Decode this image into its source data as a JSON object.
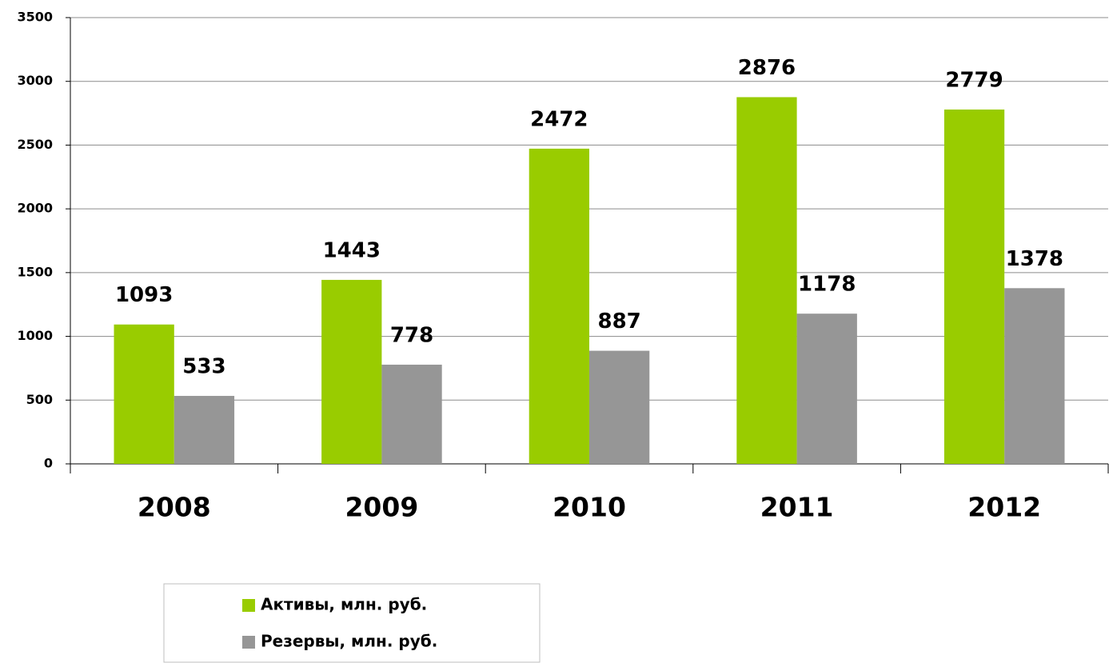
{
  "chart_data": {
    "type": "bar",
    "categories": [
      "2008",
      "2009",
      "2010",
      "2011",
      "2012"
    ],
    "series": [
      {
        "name": "Активы, млн. руб.",
        "color": "#99cc00",
        "values": [
          1093,
          1443,
          2472,
          2876,
          2779
        ]
      },
      {
        "name": "Резервы, млн. руб.",
        "color": "#969696",
        "values": [
          533,
          778,
          887,
          1178,
          1378
        ]
      }
    ],
    "ylim": [
      0,
      3500
    ],
    "yticks": [
      0,
      500,
      1000,
      1500,
      2000,
      2500,
      3000,
      3500
    ],
    "grid": true,
    "legend": "bottom"
  }
}
